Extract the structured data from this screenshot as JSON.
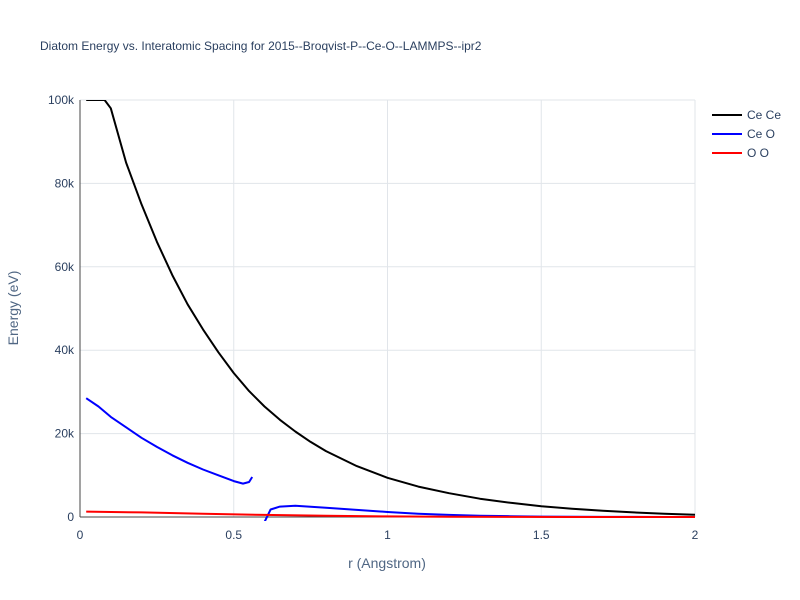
{
  "chart_data": {
    "type": "line",
    "title": "Diatom Energy vs. Interatomic Spacing for 2015--Broqvist-P--Ce-O--LAMMPS--ipr2",
    "xlabel": "r (Angstrom)",
    "ylabel": "Energy (eV)",
    "xlim": [
      0,
      2
    ],
    "ylim": [
      0,
      100000
    ],
    "xticks": [
      0,
      0.5,
      1,
      1.5,
      2
    ],
    "xtick_labels": [
      "0",
      "0.5",
      "1",
      "1.5",
      "2"
    ],
    "yticks": [
      0,
      20000,
      40000,
      60000,
      80000,
      100000
    ],
    "ytick_labels": [
      "0",
      "20k",
      "40k",
      "60k",
      "80k",
      "100k"
    ],
    "grid": true,
    "legend_position": "top-right",
    "series": [
      {
        "name": "Ce Ce",
        "color": "#000000",
        "x": [
          0.02,
          0.08,
          0.1,
          0.15,
          0.2,
          0.25,
          0.3,
          0.35,
          0.4,
          0.45,
          0.5,
          0.55,
          0.6,
          0.65,
          0.7,
          0.75,
          0.8,
          0.9,
          1.0,
          1.1,
          1.2,
          1.3,
          1.4,
          1.5,
          1.6,
          1.7,
          1.8,
          1.9,
          2.0
        ],
        "y": [
          100000,
          100000,
          98000,
          85000,
          75000,
          66000,
          58000,
          51000,
          45000,
          39500,
          34500,
          30200,
          26500,
          23300,
          20500,
          18000,
          15800,
          12200,
          9400,
          7300,
          5700,
          4400,
          3400,
          2600,
          2000,
          1500,
          1100,
          800,
          550
        ]
      },
      {
        "name": "Ce O",
        "color": "#0000ff",
        "x": [
          0.02,
          0.06,
          0.1,
          0.15,
          0.2,
          0.25,
          0.3,
          0.35,
          0.4,
          0.45,
          0.5,
          0.53,
          0.55,
          0.56,
          null,
          0.6,
          0.62,
          0.65,
          0.7,
          0.8,
          0.9,
          1.0,
          1.1,
          1.2,
          1.3,
          1.4,
          1.5,
          1.6,
          1.7,
          1.8,
          1.9,
          2.0
        ],
        "y": [
          28500,
          26500,
          24000,
          21500,
          19000,
          16800,
          14800,
          13000,
          11400,
          10000,
          8600,
          8000,
          8400,
          9600,
          null,
          -1200,
          1800,
          2500,
          2700,
          2200,
          1700,
          1200,
          800,
          500,
          300,
          200,
          100,
          50,
          30,
          20,
          10,
          5
        ]
      },
      {
        "name": "O O",
        "color": "#ff0000",
        "x": [
          0.02,
          0.2,
          0.4,
          0.6,
          0.8,
          1.0,
          1.2,
          1.4,
          1.6,
          1.8,
          2.0
        ],
        "y": [
          1300,
          1100,
          800,
          500,
          300,
          150,
          60,
          20,
          5,
          0,
          0
        ]
      }
    ]
  }
}
